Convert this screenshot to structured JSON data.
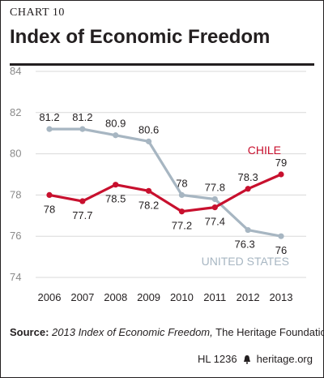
{
  "header": {
    "eyebrow": "CHART 10",
    "title": "Index of Economic Freedom"
  },
  "chart_data": {
    "type": "line",
    "x": [
      2006,
      2007,
      2008,
      2009,
      2010,
      2011,
      2012,
      2013
    ],
    "ylim": [
      74,
      84
    ],
    "yticks": [
      74,
      76,
      78,
      80,
      82,
      84
    ],
    "series": [
      {
        "name": "CHILE",
        "color": "#c8102e",
        "values": [
          78,
          77.7,
          78.5,
          78.2,
          77.2,
          77.4,
          78.3,
          79
        ],
        "labels": [
          "78",
          "77.7",
          "78.5",
          "78.2",
          "77.2",
          "77.4",
          "78.3",
          "79"
        ]
      },
      {
        "name": "UNITED STATES",
        "color": "#a7b6c2",
        "values": [
          81.2,
          81.2,
          80.9,
          80.6,
          78,
          77.8,
          76.3,
          76
        ],
        "labels": [
          "81.2",
          "81.2",
          "80.9",
          "80.6",
          "78",
          "77.8",
          "76.3",
          "76"
        ]
      }
    ],
    "grid": true
  },
  "source": {
    "label": "Source:",
    "italic": "2013 Index of Economic Freedom,",
    "rest": " The Heritage Foundation."
  },
  "footer": {
    "code": "HL 1236",
    "site": "heritage.org"
  }
}
